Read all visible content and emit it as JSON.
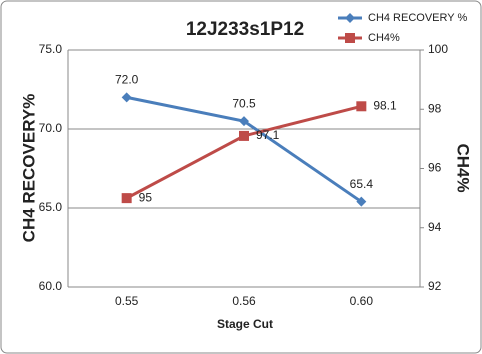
{
  "chart_data": {
    "type": "line",
    "title": "12J233s1P12",
    "x_label": "Stage Cut",
    "y_label": "CH4  RECOVERY%",
    "y2_label": "CH4%",
    "categories": [
      "0.55",
      "0.56",
      "0.60"
    ],
    "series": [
      {
        "name": "CH4 RECOVERY %",
        "color": "#4a7ebb",
        "marker": "diamond",
        "values": [
          72,
          70.5,
          65.4
        ],
        "value_labels": [
          "72.0",
          "70.5",
          "65.4"
        ]
      },
      {
        "name": "CH4%",
        "color": "#be4b48",
        "marker": "square",
        "axis": "y2",
        "values": [
          95,
          97.1,
          98.1
        ]
      }
    ],
    "ylim": [
      60,
      75
    ],
    "yticks": [
      {
        "value": 60,
        "label": "60.0"
      },
      {
        "value": 65,
        "label": "65.0"
      },
      {
        "value": 70,
        "label": "70.0"
      },
      {
        "value": 75,
        "label": "75.0"
      }
    ],
    "y2lim": [
      92,
      100
    ],
    "y2ticks": [
      92,
      94,
      96,
      98,
      100
    ],
    "grid": true,
    "legend": "top-right"
  }
}
